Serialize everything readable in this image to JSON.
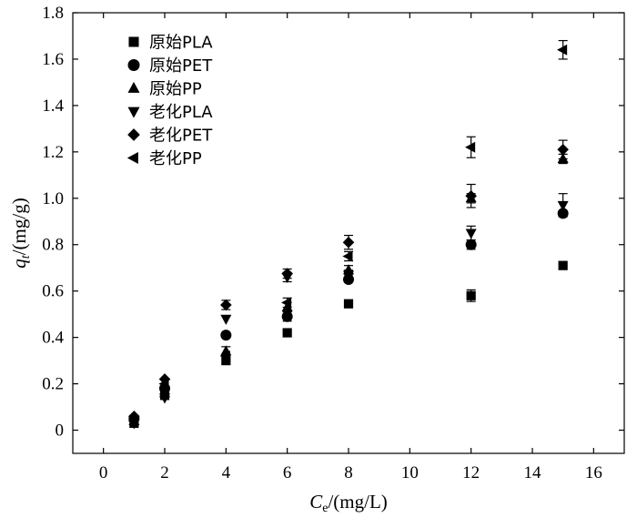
{
  "chart_data": {
    "type": "scatter",
    "xlabel": {
      "main": "C",
      "sub": "e",
      "rest": "/(mg/L)"
    },
    "ylabel": {
      "main": "q",
      "sub": "t",
      "rest": "/(mg/g)"
    },
    "xlim": [
      -1,
      17
    ],
    "ylim": [
      -0.1,
      1.8
    ],
    "xticks": [
      0,
      2,
      4,
      6,
      8,
      10,
      12,
      14,
      16
    ],
    "xtick_labels": [
      "0",
      "2",
      "4",
      "6",
      "8",
      "10",
      "12",
      "14",
      "16"
    ],
    "yticks": [
      0,
      0.2,
      0.4,
      0.6,
      0.8,
      1.0,
      1.2,
      1.4,
      1.6,
      1.8
    ],
    "ytick_labels": [
      "0",
      "0.2",
      "0.4",
      "0.6",
      "0.8",
      "1.0",
      "1.2",
      "1.4",
      "1.6",
      "1.8"
    ],
    "grid": false,
    "legend_position": "top-left",
    "series": [
      {
        "name": "原始PLA",
        "marker": "square",
        "x": [
          1,
          2,
          4,
          6,
          8,
          12,
          15
        ],
        "y": [
          0.03,
          0.15,
          0.3,
          0.42,
          0.545,
          0.58,
          0.71
        ],
        "err": [
          0,
          0,
          0,
          0,
          0,
          0.025,
          0
        ]
      },
      {
        "name": "原始PET",
        "marker": "circle",
        "x": [
          1,
          2,
          4,
          6,
          8,
          12,
          15
        ],
        "y": [
          0.05,
          0.18,
          0.41,
          0.49,
          0.65,
          0.8,
          0.935
        ],
        "err": [
          0,
          0,
          0,
          0.02,
          0,
          0.02,
          0
        ]
      },
      {
        "name": "原始PP",
        "marker": "triangle-up",
        "x": [
          1,
          2,
          4,
          6,
          8,
          12,
          15
        ],
        "y": [
          0.04,
          0.16,
          0.34,
          0.53,
          0.69,
          1.0,
          1.17
        ],
        "err": [
          0,
          0,
          0.02,
          0.02,
          0.02,
          0.02,
          0.02
        ]
      },
      {
        "name": "老化PLA",
        "marker": "triangle-down",
        "x": [
          1,
          2,
          4,
          6,
          8,
          12,
          15
        ],
        "y": [
          0.03,
          0.14,
          0.48,
          0.66,
          0.67,
          0.85,
          0.97
        ],
        "err": [
          0,
          0,
          0,
          0.02,
          0.02,
          0.03,
          0.05
        ]
      },
      {
        "name": "老化PET",
        "marker": "diamond",
        "x": [
          1,
          2,
          4,
          6,
          8,
          12,
          15
        ],
        "y": [
          0.06,
          0.22,
          0.54,
          0.675,
          0.81,
          1.01,
          1.21
        ],
        "err": [
          0,
          0,
          0.02,
          0.02,
          0.03,
          0.05,
          0.04
        ]
      },
      {
        "name": "老化PP",
        "marker": "triangle-left",
        "x": [
          1,
          2,
          4,
          6,
          8,
          12,
          15
        ],
        "y": [
          0.04,
          0.2,
          0.32,
          0.55,
          0.75,
          1.22,
          1.64
        ],
        "err": [
          0,
          0,
          0,
          0.02,
          0.02,
          0.045,
          0.04
        ]
      }
    ]
  }
}
